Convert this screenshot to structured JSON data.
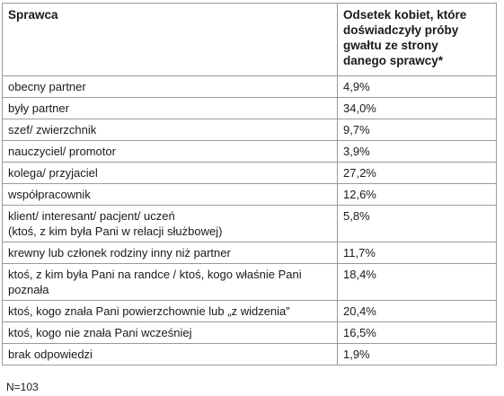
{
  "table": {
    "header": [
      "Sprawca",
      "Odsetek kobiet, które\ndoświadczyły próby\ngwałtu ze strony\ndanego sprawcy*"
    ],
    "rows": [
      [
        "obecny partner",
        "4,9%"
      ],
      [
        "były partner",
        "34,0%"
      ],
      [
        "szef/ zwierzchnik",
        "9,7%"
      ],
      [
        "nauczyciel/ promotor",
        "3,9%"
      ],
      [
        "kolega/ przyjaciel",
        "27,2%"
      ],
      [
        "współpracownik",
        "12,6%"
      ],
      [
        "klient/ interesant/ pacjent/ uczeń\n(ktoś, z kim była Pani w relacji służbowej)",
        "5,8%"
      ],
      [
        "krewny lub członek rodziny inny niż partner",
        "11,7%"
      ],
      [
        "ktoś, z kim była Pani na randce / ktoś, kogo właśnie Pani\npoznała",
        "18,4%"
      ],
      [
        "ktoś, kogo znała Pani powierzchownie lub „z widzenia”",
        "20,4%"
      ],
      [
        "ktoś, kogo nie znała Pani wcześniej",
        "16,5%"
      ],
      [
        "brak odpowiedzi",
        "1,9%"
      ]
    ]
  },
  "note": "N=103"
}
